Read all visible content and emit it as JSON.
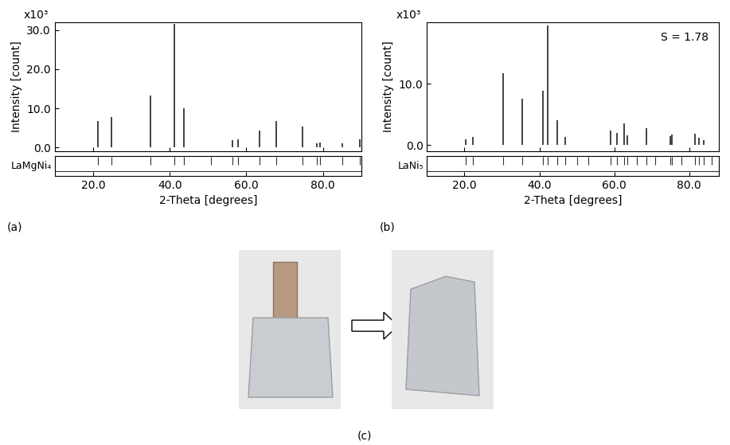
{
  "chart_data": [
    {
      "type": "stick",
      "panel_label": "(a)",
      "multiplier_label": "x10³",
      "phase_label": "LaMgNi₄",
      "x_label": "2-Theta [degrees]",
      "y_label": "Intensity [count]",
      "color": "#333333",
      "x": [
        21.3,
        24.8,
        35.0,
        41.2,
        43.8,
        56.3,
        57.8,
        63.4,
        67.8,
        74.6,
        78.3,
        79.3,
        85.0,
        89.6
      ],
      "values": [
        6.7,
        7.8,
        13.3,
        31.5,
        10.0,
        1.8,
        2.0,
        4.3,
        6.7,
        5.3,
        1.0,
        1.3,
        1.1,
        2.0
      ],
      "reflections": [
        21.3,
        24.8,
        35.0,
        41.2,
        43.8,
        50.8,
        56.3,
        57.8,
        63.4,
        67.8,
        74.6,
        78.3,
        79.3,
        85.0,
        89.6
      ],
      "xlim": [
        10,
        90
      ],
      "xticks": [
        {
          "value": 20,
          "label": "20.0"
        },
        {
          "value": 40,
          "label": "40.0"
        },
        {
          "value": 60,
          "label": "60.0"
        },
        {
          "value": 80,
          "label": "80.0"
        }
      ],
      "ylim": [
        -1,
        32
      ],
      "yticks": [
        {
          "value": 0,
          "label": "0.0"
        },
        {
          "value": 10,
          "label": "10.0"
        },
        {
          "value": 20,
          "label": "20.0"
        },
        {
          "value": 30,
          "label": "30.0"
        }
      ]
    },
    {
      "type": "stick",
      "panel_label": "(b)",
      "multiplier_label": "x10³",
      "phase_label": "LaNi₅",
      "annotation": "S = 1.78",
      "x_label": "2-Theta [degrees]",
      "y_label": "Intensity [count]",
      "color": "#333333",
      "x": [
        20.3,
        22.2,
        30.3,
        35.5,
        41.0,
        42.3,
        44.8,
        47.0,
        59.0,
        60.7,
        62.7,
        63.5,
        68.5,
        75.0,
        75.5,
        81.5,
        82.7,
        84.0
      ],
      "values": [
        0.9,
        1.3,
        11.7,
        7.5,
        8.8,
        19.5,
        4.0,
        1.4,
        2.4,
        2.0,
        3.6,
        1.6,
        2.7,
        1.5,
        1.7,
        1.9,
        1.2,
        0.8
      ],
      "reflections": [
        20.3,
        22.2,
        30.3,
        35.5,
        41.0,
        42.3,
        44.8,
        47.0,
        50.0,
        53.0,
        59.0,
        60.7,
        62.7,
        63.5,
        66.0,
        68.5,
        71.0,
        75.0,
        75.5,
        78.0,
        81.5,
        82.7,
        84.0,
        86.0
      ],
      "xlim": [
        10,
        88
      ],
      "xticks": [
        {
          "value": 20,
          "label": "20.0"
        },
        {
          "value": 40,
          "label": "40.0"
        },
        {
          "value": 60,
          "label": "60.0"
        },
        {
          "value": 80,
          "label": "80.0"
        }
      ],
      "ylim": [
        -1,
        20
      ],
      "yticks": [
        {
          "value": 0,
          "label": "0.0"
        },
        {
          "value": 10,
          "label": "10.0"
        }
      ]
    }
  ],
  "panel_c": {
    "label": "(c)"
  }
}
